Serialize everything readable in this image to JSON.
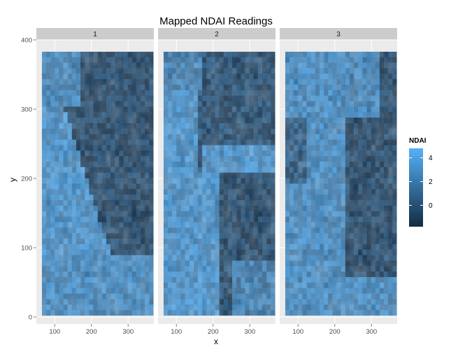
{
  "chart_data": {
    "type": "heatmap",
    "title": "Mapped NDAI Readings",
    "xlabel": "x",
    "ylabel": "y",
    "facets": [
      "1",
      "2",
      "3"
    ],
    "xlim": [
      50,
      370
    ],
    "ylim": [
      -10,
      400
    ],
    "x_ticks": [
      100,
      200,
      300
    ],
    "x_tick_labels": [
      "100",
      "200",
      "300"
    ],
    "y_ticks": [
      0,
      100,
      200,
      300,
      400
    ],
    "y_tick_labels": [
      "0",
      "100",
      "200",
      "300",
      "400"
    ],
    "data_extent": {
      "x": [
        65,
        369
      ],
      "y": [
        2,
        383
      ]
    },
    "legend": {
      "title": "NDAI",
      "breaks": [
        0,
        2,
        4
      ],
      "labels": [
        "0",
        "2",
        "4"
      ],
      "range": [
        -1.8,
        4.8
      ],
      "low_color": "#132B43",
      "high_color": "#56B1F7"
    },
    "grid": true,
    "legend_position": "right",
    "panel_background": "#ebebeb",
    "strip_background": "#cccccc"
  }
}
